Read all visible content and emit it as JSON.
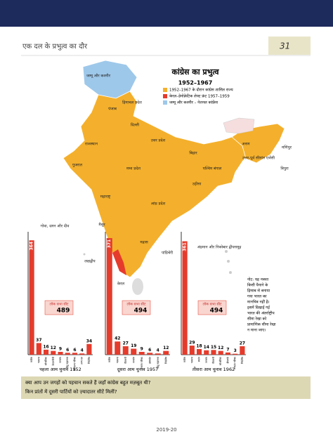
{
  "header": {
    "title": "एक दल के प्रभुत्व का दौर",
    "page": "31"
  },
  "map": {
    "title": "कांग्रेस का प्रभुत्व",
    "period": "1952–1967",
    "legend": [
      {
        "label": "1952–1967 के दौरान कांग्रेस शासित राज्य",
        "color": "#f4b02c"
      },
      {
        "label": "केरल–डेमोक्रेटिक लेफ्ट फ्रंट 1957–1959",
        "color": "#e53b2c"
      },
      {
        "label": "जम्मू और कश्मीर – नेशनल कांफ्रेंस",
        "color": "#9ec8ea"
      }
    ],
    "states": [
      "जम्मू और कश्मीर",
      "हिमाचल प्रदेश",
      "पंजाब",
      "दिल्ली",
      "राजस्थान",
      "उत्तर प्रदेश",
      "बिहार",
      "असम",
      "गुजरात",
      "मध्य प्रदेश",
      "पश्चिम बंगाल",
      "उड़ीसा",
      "महाराष्ट्र",
      "आंध्र प्रदेश",
      "मैसूर",
      "मद्रास",
      "केरल",
      "पांडिचेरी",
      "लक्षद्वीप",
      "अंडमान और निकोबार द्वीपसमूह",
      "उत्तर-पूर्व सीमांत एजेंसी",
      "मणिपुर",
      "त्रिपुरा",
      "गोवा, दमन और दीव"
    ],
    "note": [
      "नोट: यह नक्शा",
      "किसी पैमाने के",
      "हिसाब से बनाया",
      "गया भारत का",
      "मानचित्र नहीं है।",
      "इसमें दिखाई गई",
      "भारत की अंतर्राष्ट्रीय",
      "सीमा रेखा को",
      "प्रामाणिक सीमा रेखा",
      "न माना जाए।"
    ]
  },
  "chart_data": [
    {
      "type": "bar",
      "title": "पहला आम चुनाव 1952",
      "seat_label": "लोक सभा सीट",
      "seats": 489,
      "color": "#e53b2c",
      "categories": [
        "कांग्रेस",
        "भाकपा",
        "सोशलिस्ट",
        "केएमपीपी",
        "जनसंघ",
        "हिंदू महासभा",
        "रामराज्य परिषद",
        "अन्य दल",
        "निर्दलीय"
      ],
      "values": [
        364,
        37,
        16,
        12,
        9,
        6,
        6,
        4,
        34
      ],
      "ylim": [
        0,
        380
      ]
    },
    {
      "type": "bar",
      "title": "दूसरा आम चुनाव 1957",
      "seat_label": "लोक सभा सीट",
      "seats": 494,
      "color": "#e53b2c",
      "categories": [
        "कांग्रेस",
        "भाकपा",
        "पीएसपी",
        "जनसंघ",
        "गणतंत्र परिषद",
        "झारखंड",
        "हिंदू महासभा",
        "निर्दलीय"
      ],
      "values": [
        371,
        42,
        27,
        19,
        9,
        6,
        4,
        12
      ],
      "ylim": [
        0,
        380
      ]
    },
    {
      "type": "bar",
      "title": "तीसरा आम चुनाव 1962",
      "seat_label": "लोक सभा सीट",
      "seats": 494,
      "color": "#e53b2c",
      "categories": [
        "कांग्रेस",
        "भाकपा",
        "स्वतंत्र",
        "जनसंघ",
        "पीएसपी",
        "सोशलिस्ट",
        "डीएमके",
        "गणतंत्र परिषद",
        "निर्दलीय"
      ],
      "values": [
        361,
        29,
        18,
        14,
        15,
        12,
        7,
        3,
        27
      ],
      "ylim": [
        0,
        380
      ]
    }
  ],
  "questions": [
    "क्या आप उन जगहों को पहचान सकते हैं जहाँ कांग्रेस बहुत मज़बूत थी?",
    "किन प्रांतों में दूसरी पार्टियों को ज़्यादातर सीटें मिलीं?"
  ],
  "footer": "2019-20"
}
